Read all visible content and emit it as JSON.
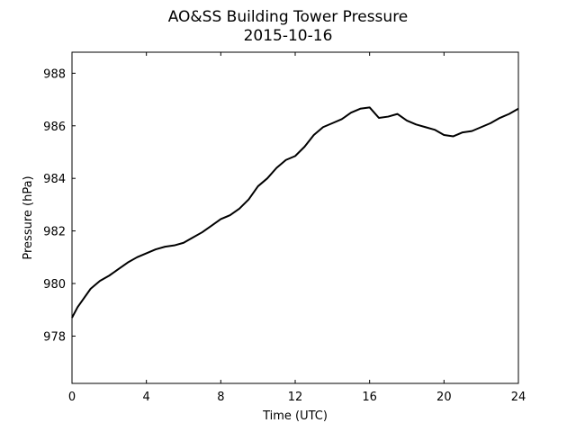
{
  "chart_data": {
    "type": "line",
    "title": "AO&SS Building Tower Pressure",
    "subtitle": "2015-10-16",
    "xlabel": "Time (UTC)",
    "ylabel": "Pressure (hPa)",
    "xlim": [
      0,
      24
    ],
    "ylim": [
      976.2,
      988.8
    ],
    "xticks": [
      0,
      4,
      8,
      12,
      16,
      20,
      24
    ],
    "yticks": [
      978,
      980,
      982,
      984,
      986,
      988
    ],
    "grid": false,
    "line_color": "#000000",
    "series": [
      {
        "x": [
          0.0,
          0.3,
          0.6,
          1.0,
          1.5,
          2.0,
          2.5,
          3.0,
          3.5,
          4.0,
          4.5,
          5.0,
          5.5,
          6.0,
          6.5,
          7.0,
          7.5,
          8.0,
          8.5,
          9.0,
          9.5,
          10.0,
          10.5,
          11.0,
          11.5,
          12.0,
          12.5,
          13.0,
          13.5,
          14.0,
          14.5,
          15.0,
          15.5,
          16.0,
          16.5,
          17.0,
          17.5,
          18.0,
          18.5,
          19.0,
          19.5,
          20.0,
          20.5,
          21.0,
          21.5,
          22.0,
          22.5,
          23.0,
          23.5,
          24.0
        ],
        "y": [
          978.7,
          979.1,
          979.4,
          979.8,
          980.1,
          980.3,
          980.55,
          980.8,
          981.0,
          981.15,
          981.3,
          981.4,
          981.45,
          981.55,
          981.75,
          981.95,
          982.2,
          982.45,
          982.6,
          982.85,
          983.2,
          983.7,
          984.0,
          984.4,
          984.7,
          984.85,
          985.2,
          985.65,
          985.95,
          986.1,
          986.25,
          986.5,
          986.65,
          986.7,
          986.3,
          986.35,
          986.45,
          986.2,
          986.05,
          985.95,
          985.85,
          985.65,
          985.6,
          985.75,
          985.8,
          985.95,
          986.1,
          986.3,
          986.45,
          986.65
        ]
      }
    ]
  }
}
